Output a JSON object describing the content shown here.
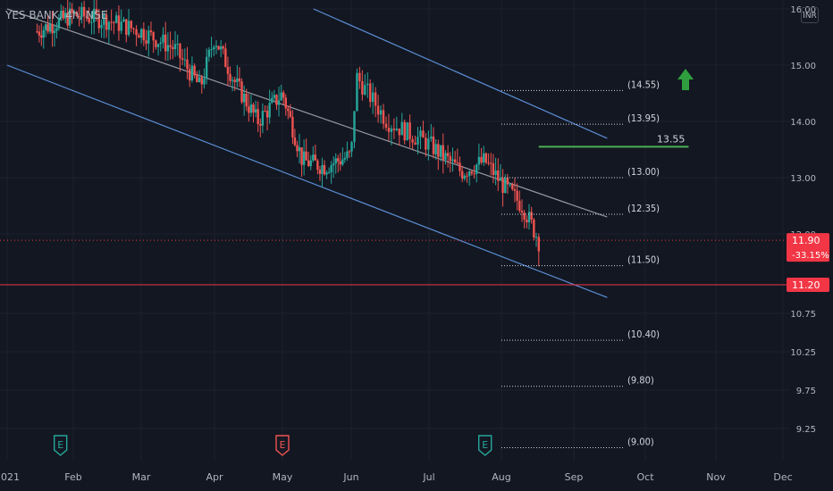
{
  "header": {
    "symbol_title": "YES BANK, 4h, NSE",
    "currency": "INR"
  },
  "colors": {
    "background": "#131722",
    "up": "#26a69a",
    "down": "#ef5350",
    "channel": "#5b8fd6",
    "midline": "#9598a1",
    "target": "#4caf50",
    "support": "#f23645",
    "grid": "#1e222d",
    "arrow": "#2e9e3e"
  },
  "chart_data": {
    "type": "candlestick",
    "title": "YES BANK, 4h, NSE",
    "x_axis_labels": [
      "2021",
      "Feb",
      "Mar",
      "Apr",
      "May",
      "Jun",
      "Jul",
      "Aug",
      "Sep",
      "Oct",
      "Nov",
      "Dec"
    ],
    "x_dates": [
      "2021-01-01",
      "2021-02-01",
      "2021-03-01",
      "2021-04-01",
      "2021-05-01",
      "2021-06-01",
      "2021-07-01",
      "2021-08-01",
      "2021-09-01",
      "2021-10-01",
      "2021-11-01",
      "2021-12-01"
    ],
    "y_axis_labels": [
      "16.00",
      "15.00",
      "14.00",
      "13.00",
      "12.00",
      "10.75",
      "10.25",
      "9.75",
      "9.25"
    ],
    "ylim": [
      8.85,
      16.05
    ],
    "price_path": [
      {
        "date": "2021-01-15",
        "price": 15.6
      },
      {
        "date": "2021-02-01",
        "price": 15.9
      },
      {
        "date": "2021-02-15",
        "price": 15.8
      },
      {
        "date": "2021-03-01",
        "price": 15.6
      },
      {
        "date": "2021-03-15",
        "price": 15.3
      },
      {
        "date": "2021-03-26",
        "price": 14.6
      },
      {
        "date": "2021-04-01",
        "price": 15.5
      },
      {
        "date": "2021-04-10",
        "price": 14.7
      },
      {
        "date": "2021-04-20",
        "price": 14.0
      },
      {
        "date": "2021-05-01",
        "price": 14.5
      },
      {
        "date": "2021-05-10",
        "price": 13.3
      },
      {
        "date": "2021-05-20",
        "price": 13.2
      },
      {
        "date": "2021-06-01",
        "price": 13.4
      },
      {
        "date": "2021-06-03",
        "price": 14.8
      },
      {
        "date": "2021-06-15",
        "price": 14.0
      },
      {
        "date": "2021-07-01",
        "price": 13.6
      },
      {
        "date": "2021-07-15",
        "price": 13.1
      },
      {
        "date": "2021-07-25",
        "price": 13.3
      },
      {
        "date": "2021-08-01",
        "price": 12.9
      },
      {
        "date": "2021-08-10",
        "price": 12.5
      },
      {
        "date": "2021-08-17",
        "price": 11.9
      }
    ],
    "price_markers": [
      {
        "label": "11.90",
        "sublabel": "-33.15%",
        "price": 11.9,
        "color": "#f23645",
        "style": "dotted"
      },
      {
        "label": "11.20",
        "price": 11.2,
        "color": "#f23645",
        "style": "solid"
      }
    ],
    "fib_levels": [
      14.55,
      13.95,
      13.0,
      12.35,
      11.5,
      10.4,
      9.8,
      9.0
    ],
    "fib_labels": [
      "(14.55)",
      "(13.95)",
      "(13.00)",
      "(12.35)",
      "(11.50)",
      "(10.40)",
      "(9.80)",
      "(9.00)"
    ],
    "fib_start_date": "2021-08-01",
    "target": {
      "label": "13.55",
      "value": 13.55,
      "from": "2021-08-17",
      "to": "2021-10-20"
    },
    "channel": {
      "upper": [
        {
          "date": "2021-05-15",
          "price": 16.0
        },
        {
          "date": "2021-09-15",
          "price": 13.7
        }
      ],
      "mid": [
        {
          "date": "2021-01-01",
          "price": 16.0
        },
        {
          "date": "2021-09-15",
          "price": 12.3
        }
      ],
      "lower": [
        {
          "date": "2021-01-01",
          "price": 15.0
        },
        {
          "date": "2021-09-15",
          "price": 11.0
        }
      ]
    },
    "earnings_events": [
      {
        "date": "2021-01-26",
        "label": "E",
        "color": "#26a69a"
      },
      {
        "date": "2021-05-01",
        "label": "E",
        "color": "#ef5350"
      },
      {
        "date": "2021-07-25",
        "label": "E",
        "color": "#26a69a"
      }
    ]
  }
}
